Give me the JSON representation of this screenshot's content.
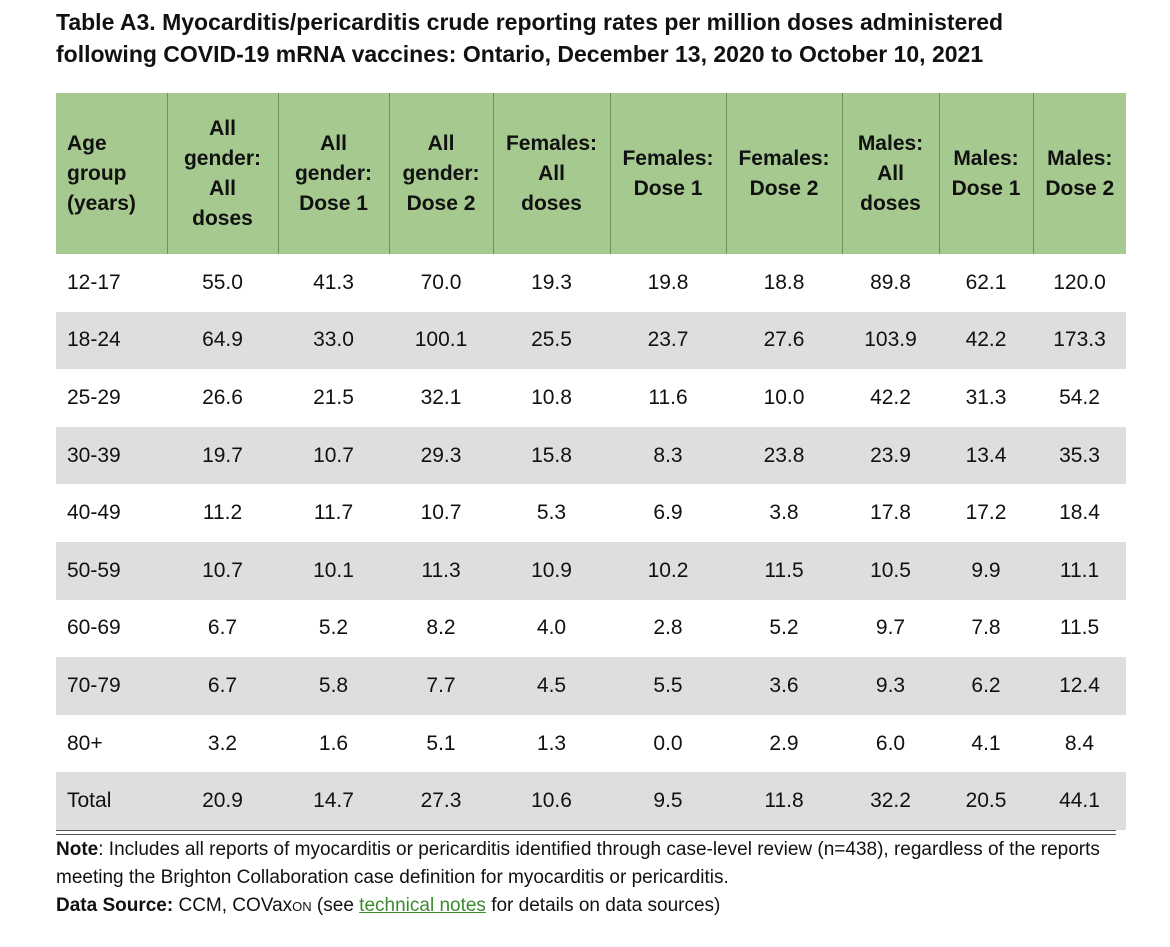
{
  "title": {
    "line1": "Table A3. Myocarditis/pericarditis crude reporting rates per million doses administered",
    "line2": "following COVID-19 mRNA vaccines: Ontario, December 13, 2020 to October 10, 2021"
  },
  "table": {
    "headers": [
      {
        "lines": [
          "Age",
          "group",
          "(years)"
        ]
      },
      {
        "lines": [
          "All",
          "gender:",
          "All",
          "doses"
        ]
      },
      {
        "lines": [
          "All",
          "gender:",
          "Dose 1"
        ]
      },
      {
        "lines": [
          "All",
          "gender:",
          "Dose 2"
        ]
      },
      {
        "lines": [
          "Females:",
          "All",
          "doses"
        ]
      },
      {
        "lines": [
          "Females:",
          "Dose 1"
        ]
      },
      {
        "lines": [
          "Females:",
          "Dose 2"
        ]
      },
      {
        "lines": [
          "Males:",
          "All",
          "doses"
        ]
      },
      {
        "lines": [
          "Males:",
          "Dose 1"
        ]
      },
      {
        "lines": [
          "Males:",
          "Dose 2"
        ]
      }
    ],
    "rows": [
      [
        "12-17",
        "55.0",
        "41.3",
        "70.0",
        "19.3",
        "19.8",
        "18.8",
        "89.8",
        "62.1",
        "120.0"
      ],
      [
        "18-24",
        "64.9",
        "33.0",
        "100.1",
        "25.5",
        "23.7",
        "27.6",
        "103.9",
        "42.2",
        "173.3"
      ],
      [
        "25-29",
        "26.6",
        "21.5",
        "32.1",
        "10.8",
        "11.6",
        "10.0",
        "42.2",
        "31.3",
        "54.2"
      ],
      [
        "30-39",
        "19.7",
        "10.7",
        "29.3",
        "15.8",
        "8.3",
        "23.8",
        "23.9",
        "13.4",
        "35.3"
      ],
      [
        "40-49",
        "11.2",
        "11.7",
        "10.7",
        "5.3",
        "6.9",
        "3.8",
        "17.8",
        "17.2",
        "18.4"
      ],
      [
        "50-59",
        "10.7",
        "10.1",
        "11.3",
        "10.9",
        "10.2",
        "11.5",
        "10.5",
        "9.9",
        "11.1"
      ],
      [
        "60-69",
        "6.7",
        "5.2",
        "8.2",
        "4.0",
        "2.8",
        "5.2",
        "9.7",
        "7.8",
        "11.5"
      ],
      [
        "70-79",
        "6.7",
        "5.8",
        "7.7",
        "4.5",
        "5.5",
        "3.6",
        "9.3",
        "6.2",
        "12.4"
      ],
      [
        "80+",
        "3.2",
        "1.6",
        "5.1",
        "1.3",
        "0.0",
        "2.9",
        "6.0",
        "4.1",
        "8.4"
      ],
      [
        "Total",
        "20.9",
        "14.7",
        "27.3",
        "10.6",
        "9.5",
        "11.8",
        "32.2",
        "20.5",
        "44.1"
      ]
    ]
  },
  "note": {
    "label": "Note",
    "text": ": Includes all reports of myocarditis or pericarditis identified through case-level review (n=438), regardless of the reports meeting the Brighton Collaboration case definition for myocarditis or pericarditis."
  },
  "source": {
    "label": "Data Source:",
    "text_before": " CCM, COVax",
    "subscript": "ON",
    "text_middle": " (see ",
    "link_text": "technical notes",
    "text_after": " for details on data sources)"
  },
  "colors": {
    "header_bg": "#a5c98f",
    "alt_row_bg": "#dedede",
    "link": "#3c8a2e"
  }
}
